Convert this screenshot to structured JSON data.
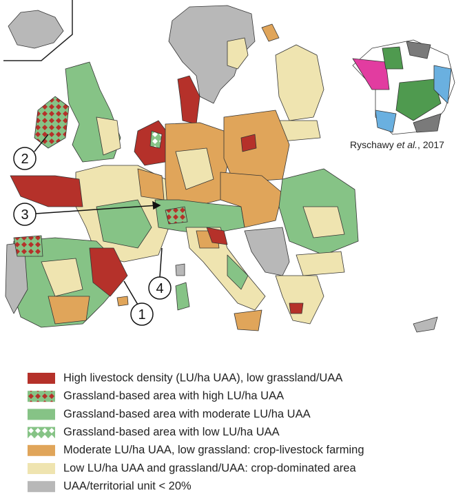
{
  "citation": {
    "author": "Ryschawy",
    "etal": "et al.",
    "year": ", 2017"
  },
  "callouts": [
    "1",
    "2",
    "3",
    "4"
  ],
  "legend": [
    "High livestock density (LU/ha UAA), low grassland/UAA",
    "Grassland-based area with high LU/ha UAA",
    "Grassland-based area with moderate LU/ha UAA",
    "Grassland-based area with low LU/ha UAA",
    "Moderate LU/ha UAA, low grassland: crop-livestock farming",
    "Low LU/ha UAA and grassland/UAA: crop-dominated area",
    "UAA/territorial unit < 20%"
  ]
}
